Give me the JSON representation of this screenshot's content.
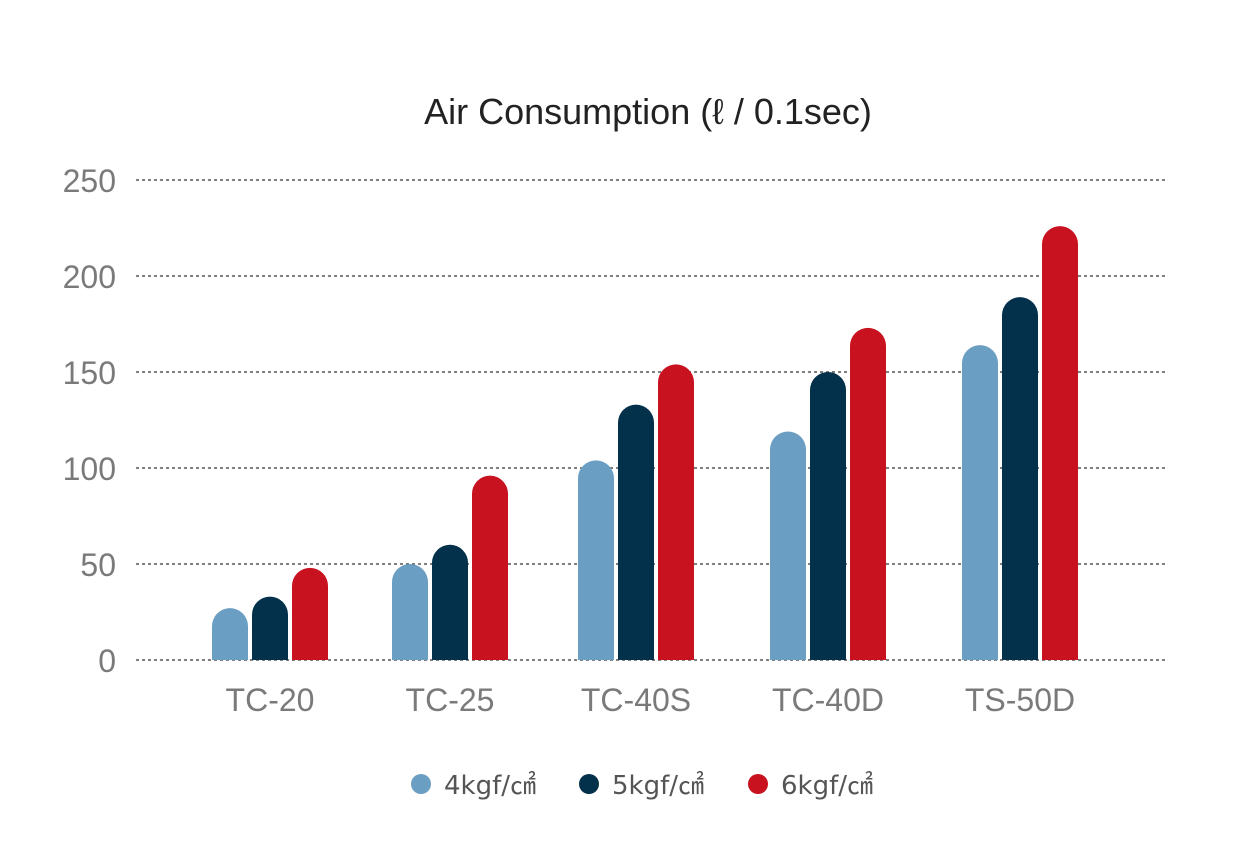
{
  "chart_data": {
    "type": "bar",
    "title": "Air Consumption (ℓ / 0.1sec)",
    "xlabel": "",
    "ylabel": "",
    "categories": [
      "TC-20",
      "TC-25",
      "TC-40S",
      "TC-40D",
      "TS-50D"
    ],
    "series": [
      {
        "name": "4kgf/㎠",
        "color": "#6a9ec2",
        "values": [
          27,
          50,
          104,
          119,
          164
        ]
      },
      {
        "name": "5kgf/㎠",
        "color": "#03304a",
        "values": [
          33,
          60,
          133,
          150,
          189
        ]
      },
      {
        "name": "6kgf/㎠",
        "color": "#c8121f",
        "values": [
          48,
          96,
          154,
          173,
          226
        ]
      }
    ],
    "ylim": [
      0,
      250
    ],
    "yticks": [
      0,
      50,
      100,
      150,
      200,
      250
    ],
    "grid": true,
    "legend_position": "bottom-center"
  }
}
